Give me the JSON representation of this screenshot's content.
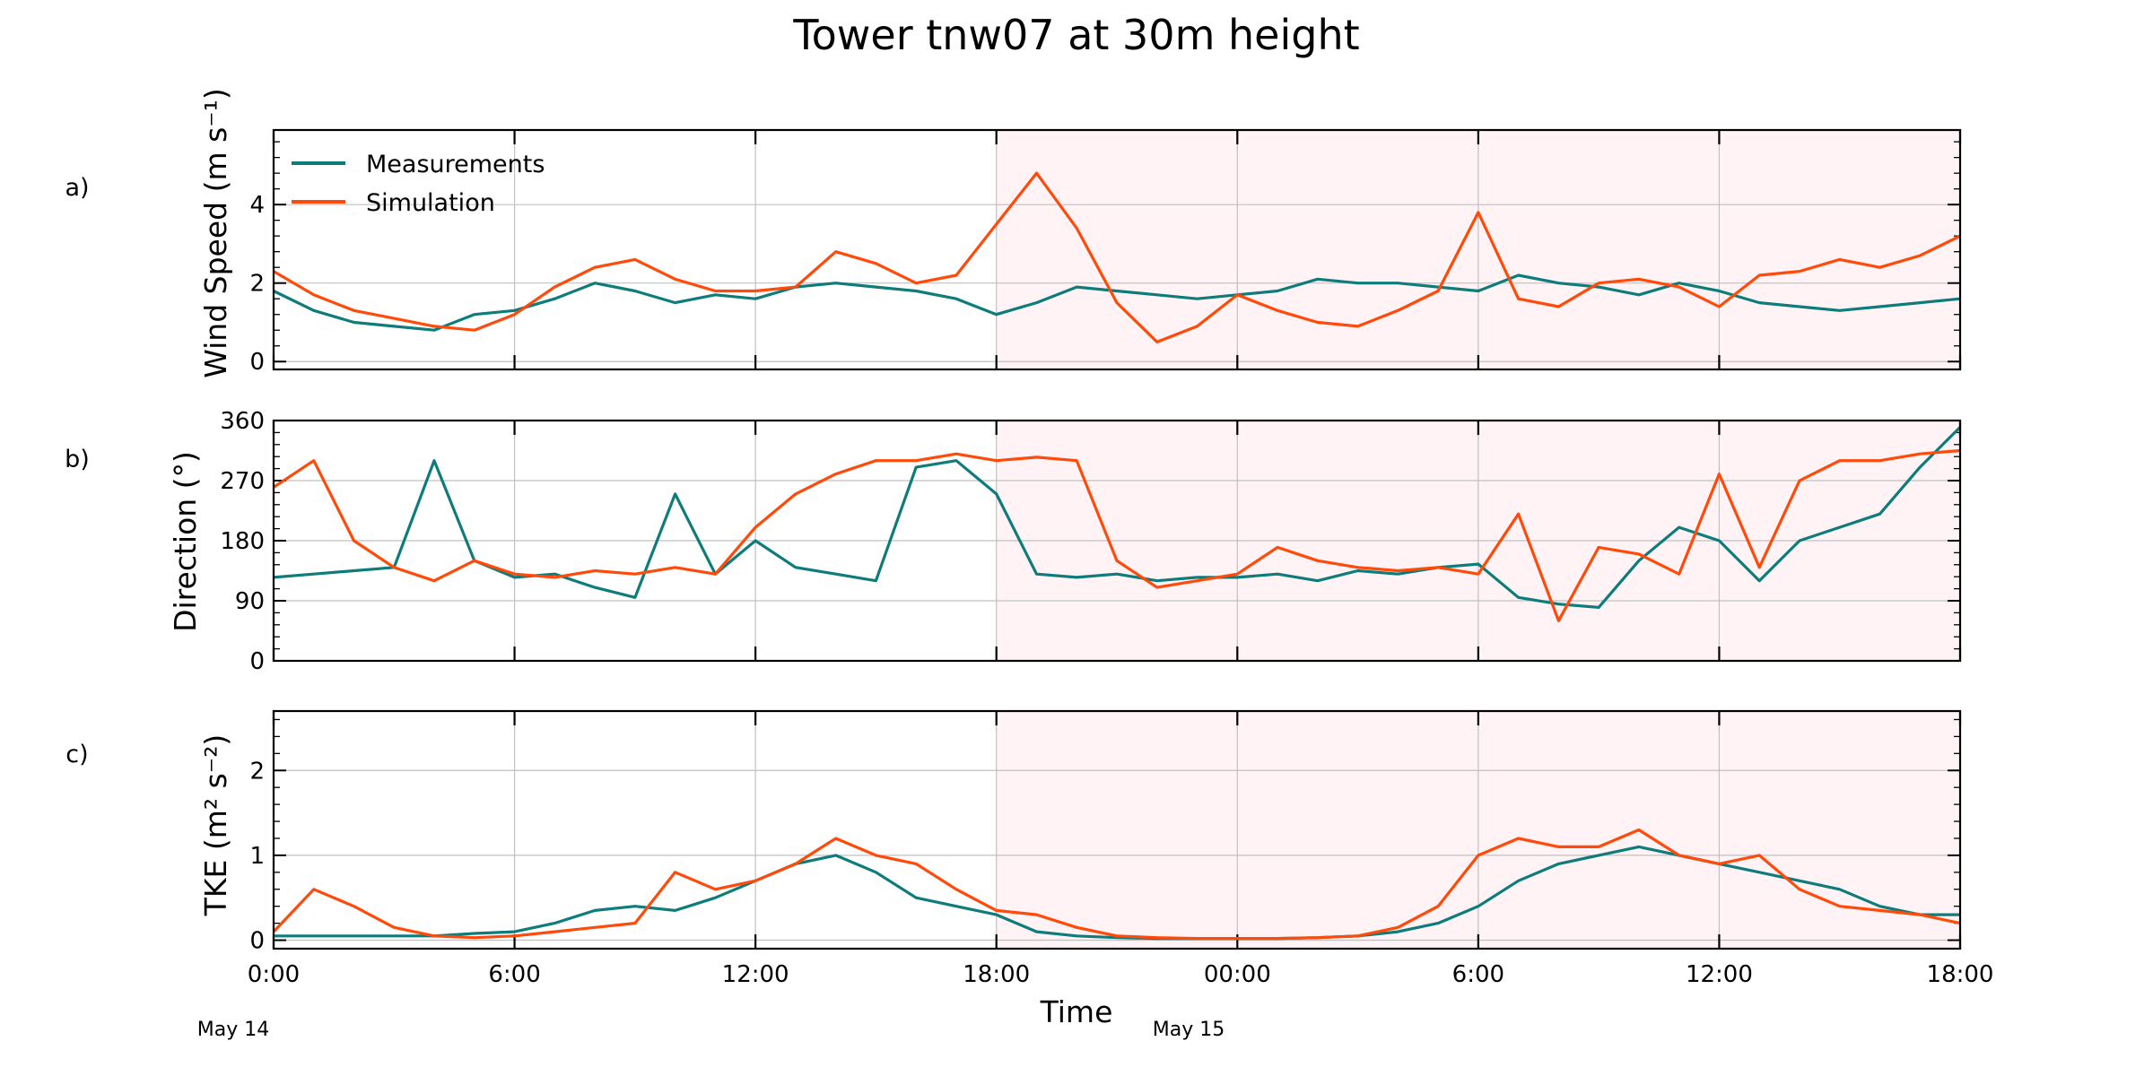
{
  "title": "Tower tnw07 at 30m height",
  "xlabel": "Time",
  "x_ticks": [
    "0:00",
    "6:00",
    "12:00",
    "18:00",
    "00:00",
    "6:00",
    "12:00",
    "18:00"
  ],
  "date_labels": [
    "May 14",
    "May 15"
  ],
  "legend": [
    {
      "label": "Measurements",
      "color": "#0e7c7b"
    },
    {
      "label": "Simulation",
      "color": "#ff4a0a"
    }
  ],
  "colors": {
    "measurements": "#0e7c7b",
    "simulation": "#ff4a0a",
    "shade": "#fff3f6"
  },
  "chart_data": [
    {
      "type": "line",
      "panel": "a)",
      "ylabel": "Wind Speed (m s⁻¹)",
      "ylim": [
        -0.2,
        5.9
      ],
      "yticks": [
        0,
        2,
        4
      ],
      "x_hours": [
        0,
        1,
        2,
        3,
        4,
        5,
        6,
        7,
        8,
        9,
        10,
        11,
        12,
        13,
        14,
        15,
        16,
        17,
        18,
        19,
        20,
        21,
        22,
        23,
        24,
        25,
        26,
        27,
        28,
        29,
        30,
        31,
        32,
        33,
        34,
        35,
        36,
        37,
        38,
        39,
        40,
        41,
        42
      ],
      "shaded_hours": [
        18,
        42
      ],
      "grid": true,
      "series": [
        {
          "name": "Measurements",
          "values": [
            1.8,
            1.3,
            1.0,
            0.9,
            0.8,
            1.2,
            1.3,
            1.6,
            2.0,
            1.8,
            1.5,
            1.7,
            1.6,
            1.9,
            2.0,
            1.9,
            1.8,
            1.6,
            1.2,
            1.5,
            1.9,
            1.8,
            1.7,
            1.6,
            1.7,
            1.8,
            2.1,
            2.0,
            2.0,
            1.9,
            1.8,
            2.2,
            2.0,
            1.9,
            1.7,
            2.0,
            1.8,
            1.5,
            1.4,
            1.3,
            1.4,
            1.5,
            1.6
          ]
        },
        {
          "name": "Simulation",
          "values": [
            2.3,
            1.7,
            1.3,
            1.1,
            0.9,
            0.8,
            1.2,
            1.9,
            2.4,
            2.6,
            2.1,
            1.8,
            1.8,
            1.9,
            2.8,
            2.5,
            2.0,
            2.2,
            3.5,
            4.8,
            3.4,
            1.5,
            0.5,
            0.9,
            1.7,
            1.3,
            1.0,
            0.9,
            1.3,
            1.8,
            3.8,
            1.6,
            1.4,
            2.0,
            2.1,
            1.9,
            1.4,
            2.2,
            2.3,
            2.6,
            2.4,
            2.7,
            3.2
          ]
        }
      ]
    },
    {
      "type": "line",
      "panel": "b)",
      "ylabel": "Direction (°)",
      "ylim": [
        0,
        360
      ],
      "yticks": [
        0,
        90,
        180,
        270,
        360
      ],
      "x_hours": [
        0,
        1,
        2,
        3,
        4,
        5,
        6,
        7,
        8,
        9,
        10,
        11,
        12,
        13,
        14,
        15,
        16,
        17,
        18,
        19,
        20,
        21,
        22,
        23,
        24,
        25,
        26,
        27,
        28,
        29,
        30,
        31,
        32,
        33,
        34,
        35,
        36,
        37,
        38,
        39,
        40,
        41,
        42
      ],
      "shaded_hours": [
        18,
        42
      ],
      "grid": true,
      "series": [
        {
          "name": "Measurements",
          "values": [
            125,
            130,
            135,
            140,
            300,
            150,
            125,
            130,
            110,
            95,
            250,
            130,
            180,
            140,
            130,
            120,
            290,
            300,
            250,
            130,
            125,
            130,
            120,
            125,
            125,
            130,
            120,
            135,
            130,
            140,
            145,
            95,
            85,
            80,
            150,
            200,
            180,
            120,
            180,
            200,
            220,
            290,
            350
          ]
        },
        {
          "name": "Simulation",
          "values": [
            260,
            300,
            180,
            140,
            120,
            150,
            130,
            125,
            135,
            130,
            140,
            130,
            200,
            250,
            280,
            300,
            300,
            310,
            300,
            305,
            300,
            150,
            110,
            120,
            130,
            170,
            150,
            140,
            135,
            140,
            130,
            220,
            60,
            170,
            160,
            130,
            280,
            140,
            270,
            300,
            300,
            310,
            315
          ]
        }
      ]
    },
    {
      "type": "line",
      "panel": "c)",
      "ylabel": "TKE (m² s⁻²)",
      "ylim": [
        -0.1,
        2.7
      ],
      "yticks": [
        0,
        1,
        2
      ],
      "x_hours": [
        0,
        1,
        2,
        3,
        4,
        5,
        6,
        7,
        8,
        9,
        10,
        11,
        12,
        13,
        14,
        15,
        16,
        17,
        18,
        19,
        20,
        21,
        22,
        23,
        24,
        25,
        26,
        27,
        28,
        29,
        30,
        31,
        32,
        33,
        34,
        35,
        36,
        37,
        38,
        39,
        40,
        41,
        42
      ],
      "shaded_hours": [
        18,
        42
      ],
      "grid": true,
      "series": [
        {
          "name": "Measurements",
          "values": [
            0.05,
            0.05,
            0.05,
            0.05,
            0.05,
            0.08,
            0.1,
            0.2,
            0.35,
            0.4,
            0.35,
            0.5,
            0.7,
            0.9,
            1.0,
            0.8,
            0.5,
            0.4,
            0.3,
            0.1,
            0.05,
            0.03,
            0.02,
            0.02,
            0.02,
            0.02,
            0.03,
            0.05,
            0.1,
            0.2,
            0.4,
            0.7,
            0.9,
            1.0,
            1.1,
            1.0,
            0.9,
            0.8,
            0.7,
            0.6,
            0.4,
            0.3,
            0.3
          ]
        },
        {
          "name": "Simulation",
          "values": [
            0.1,
            0.6,
            0.4,
            0.15,
            0.05,
            0.03,
            0.05,
            0.1,
            0.15,
            0.2,
            0.8,
            0.6,
            0.7,
            0.9,
            1.2,
            1.0,
            0.9,
            0.6,
            0.35,
            0.3,
            0.15,
            0.05,
            0.03,
            0.02,
            0.02,
            0.02,
            0.03,
            0.05,
            0.15,
            0.4,
            1.0,
            1.2,
            1.1,
            1.1,
            1.3,
            1.0,
            0.9,
            1.0,
            0.6,
            0.4,
            0.35,
            0.3,
            0.2
          ]
        }
      ]
    }
  ]
}
